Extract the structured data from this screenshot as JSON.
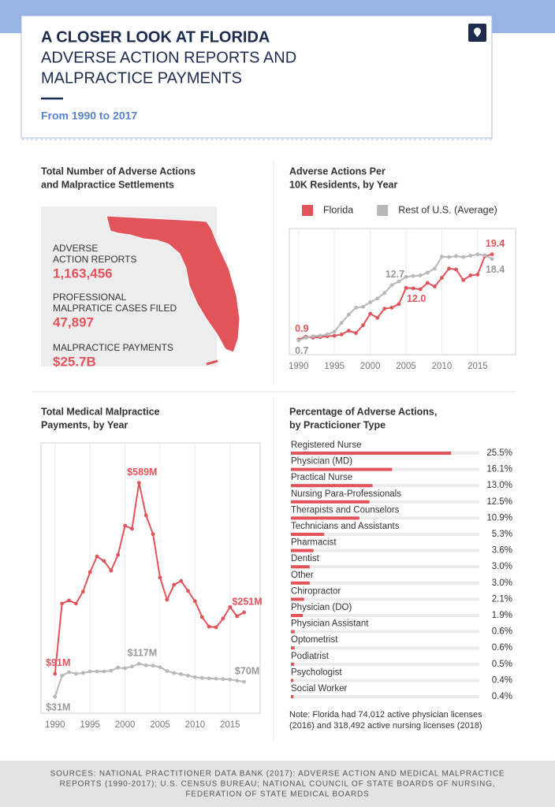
{
  "header": {
    "title": "A CLOSER LOOK AT FLORIDA",
    "subtitle": [
      "ADVERSE ACTION REPORTS AND",
      "MALPRACTICE PAYMENTS"
    ],
    "date_range": "From 1990 to 2017"
  },
  "summary": {
    "title": [
      "Total Number of Adverse Actions",
      "and Malpractice Settlements"
    ],
    "stats": [
      {
        "label": [
          "ADVERSE",
          "ACTION REPORTS"
        ],
        "value": "1,163,456"
      },
      {
        "label": [
          "PROFESSIONAL",
          "MALPRATICE CASES FILED"
        ],
        "value": "47,897"
      },
      {
        "label": [
          "MALPRACTICE PAYMENTS"
        ],
        "value": "$25.7B"
      }
    ]
  },
  "chart_data": [
    {
      "type": "line",
      "title": [
        "Adverse Actions Per",
        "10K Residents, by Year"
      ],
      "x": [
        1990,
        1991,
        1992,
        1993,
        1994,
        1995,
        1996,
        1997,
        1998,
        1999,
        2000,
        2001,
        2002,
        2003,
        2004,
        2005,
        2006,
        2007,
        2008,
        2009,
        2010,
        2011,
        2012,
        2013,
        2014,
        2015,
        2016,
        2017
      ],
      "xlim": [
        1988.7,
        2020.3
      ],
      "xticks": [
        1990,
        1995,
        2000,
        2005,
        2010,
        2015
      ],
      "ylim": [
        -2.4,
        25
      ],
      "legend": "top",
      "series": [
        {
          "name": "Florida",
          "color": "#e0545a",
          "values": [
            0.9,
            1.5,
            1.3,
            1.4,
            1.6,
            1.7,
            2.0,
            2.8,
            2.3,
            4.0,
            6.5,
            5.6,
            7.6,
            7.8,
            8.6,
            12.1,
            12.0,
            11.8,
            13.2,
            12.4,
            14.3,
            16.3,
            16.1,
            13.8,
            14.8,
            15.0,
            19.0,
            19.4
          ],
          "value_labels": [
            "0.9",
            null,
            null,
            null,
            null,
            null,
            null,
            null,
            null,
            null,
            null,
            null,
            null,
            null,
            null,
            null,
            "12.0",
            null,
            null,
            null,
            null,
            null,
            null,
            null,
            null,
            null,
            null,
            "19.4"
          ]
        },
        {
          "name": "Rest of U.S. (Average)",
          "color": "#b8b8b8",
          "values": [
            0.7,
            1.3,
            1.6,
            1.7,
            2.0,
            2.6,
            4.5,
            6.3,
            7.8,
            8.0,
            9.0,
            9.8,
            11.0,
            12.7,
            13.5,
            14.5,
            14.7,
            14.8,
            15.4,
            16.3,
            18.9,
            18.8,
            19.0,
            18.8,
            19.1,
            19.4,
            19.2,
            18.4
          ],
          "value_labels": [
            "0.7",
            null,
            null,
            null,
            null,
            null,
            null,
            null,
            null,
            null,
            null,
            null,
            null,
            "12.7",
            null,
            null,
            null,
            null,
            null,
            null,
            null,
            null,
            null,
            null,
            null,
            null,
            null,
            "18.4"
          ]
        }
      ]
    },
    {
      "type": "line",
      "title": [
        "Total Medical Malpractice",
        "Payments, by Year"
      ],
      "x": [
        1990,
        1991,
        1992,
        1993,
        1994,
        1995,
        1996,
        1997,
        1998,
        1999,
        2000,
        2001,
        2002,
        2003,
        2004,
        2005,
        2006,
        2007,
        2008,
        2009,
        2010,
        2011,
        2012,
        2013,
        2014,
        2015,
        2016,
        2017
      ],
      "xlim": [
        1988,
        2019.3
      ],
      "xticks": [
        1990,
        1995,
        2000,
        2005,
        2010,
        2015
      ],
      "ylim": [
        -12,
        693
      ],
      "series": [
        {
          "name": "Florida",
          "color": "#e0545a",
          "values": [
            91,
            274,
            282,
            274,
            305,
            356,
            397,
            385,
            360,
            401,
            477,
            469,
            589,
            504,
            455,
            342,
            284,
            323,
            333,
            307,
            280,
            239,
            214,
            212,
            235,
            265,
            241,
            251
          ],
          "value_labels": [
            "$91M",
            null,
            null,
            null,
            null,
            null,
            null,
            null,
            null,
            null,
            null,
            null,
            "$589M",
            null,
            null,
            null,
            null,
            null,
            null,
            null,
            null,
            null,
            null,
            null,
            null,
            null,
            null,
            "$251M"
          ]
        },
        {
          "name": "Rest of U.S. (Average)",
          "color": "#b8b8b8",
          "values": [
            31,
            86,
            95,
            91,
            93,
            97,
            97,
            97,
            99,
            107,
            105,
            110,
            117,
            113,
            112,
            108,
            98,
            93,
            90,
            86,
            82,
            80,
            79,
            78,
            77,
            76,
            73,
            70
          ],
          "value_labels": [
            "$31M",
            null,
            null,
            null,
            null,
            null,
            null,
            null,
            null,
            null,
            null,
            null,
            "$117M",
            null,
            null,
            null,
            null,
            null,
            null,
            null,
            null,
            null,
            null,
            null,
            null,
            null,
            null,
            "$70M"
          ]
        }
      ]
    },
    {
      "type": "hbar",
      "title": [
        "Percentage of Adverse Actions,",
        "by Practicioner Type"
      ],
      "categories": [
        "Registered Nurse",
        "Physician (MD)",
        "Practical Nurse",
        "Nursing Para-Professionals",
        "Therapists and Counselors",
        "Technicians and Assistants",
        "Pharmacist",
        "Dentist",
        "Other",
        "Chiropractor",
        "Physician (DO)",
        "Physician Assistant",
        "Optometrist",
        "Podiatrist",
        "Psychologist",
        "Social Worker"
      ],
      "values": [
        25.5,
        16.1,
        13.0,
        12.5,
        10.9,
        5.3,
        3.6,
        3.0,
        3.0,
        2.1,
        1.9,
        0.6,
        0.6,
        0.5,
        0.4,
        0.4
      ],
      "value_labels": [
        "25.5%",
        "16.1%",
        "13.0%",
        "12.5%",
        "10.9%",
        "5.3%",
        "3.6%",
        "3.0%",
        "3.0%",
        "2.1%",
        "1.9%",
        "0.6%",
        "0.6%",
        "0.5%",
        "0.4%",
        "0.4%"
      ],
      "xlim": [
        0,
        30
      ],
      "color": "#e0545a",
      "track_color": "#ececec",
      "note": [
        "Note: Florida had 74,012 active physician licenses",
        "(2016) and 318,492 active nursing licenses (2018)"
      ]
    }
  ],
  "sources": [
    "SOURCES: NATIONAL PRACTITIONER DATA BANK (2017): ADVERSE ACTION AND MEDICAL MALPRACTICE",
    "REPORTS (1990-2017); U.S. CENSUS BUREAU; NATIONAL COUNCIL OF STATE BOARDS OF NURSING,",
    "FEDERATION OF STATE MEDICAL BOARDS"
  ]
}
